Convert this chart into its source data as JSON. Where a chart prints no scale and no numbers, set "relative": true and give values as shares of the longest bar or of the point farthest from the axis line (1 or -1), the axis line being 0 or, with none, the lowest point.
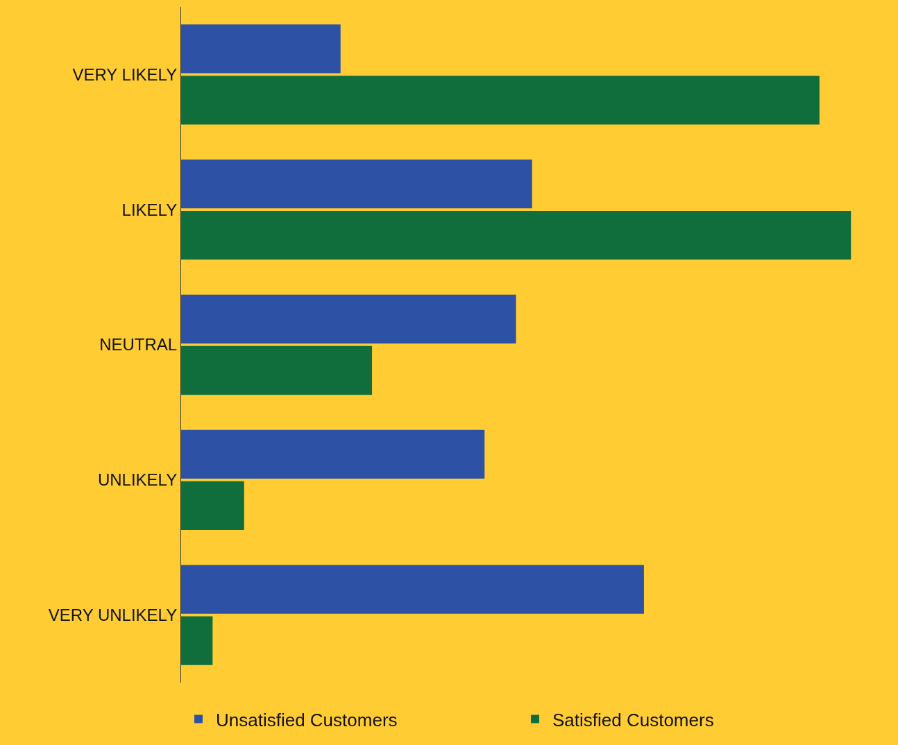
{
  "chart_data": {
    "type": "bar",
    "orientation": "horizontal",
    "relative": true,
    "categories": [
      "VERY LIKELY",
      "LIKELY",
      "NEUTRAL",
      "UNLIKELY",
      "VERY UNLIKELY"
    ],
    "series": [
      {
        "name": "Unsatisfied Customers",
        "color": "#2d52a5",
        "values": [
          0.238,
          0.524,
          0.5,
          0.453,
          0.691
        ]
      },
      {
        "name": "Satisfied Customers",
        "color": "#0f6e3b",
        "values": [
          0.953,
          1,
          0.285,
          0.094,
          0.047
        ]
      }
    ],
    "legend": "bottom"
  }
}
